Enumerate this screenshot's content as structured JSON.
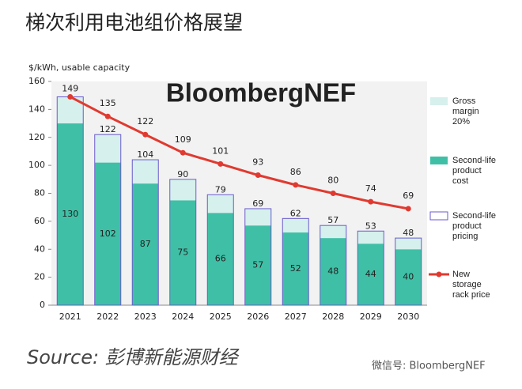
{
  "chart_data": {
    "type": "bar",
    "title": "梯次利用电池组价格展望",
    "y_label": "$/kWh, usable capacity",
    "brand": "BloombergNEF",
    "source": "Source: 彭博新能源财经",
    "watermark": "微信号: BloombergNEF",
    "categories": [
      "2021",
      "2022",
      "2023",
      "2024",
      "2025",
      "2026",
      "2027",
      "2028",
      "2029",
      "2030"
    ],
    "series": [
      {
        "name": "Gross\nmargin\n20%",
        "kind": "stack",
        "color": "#d5f0ed",
        "values": [
          19,
          20,
          17,
          15,
          13,
          12,
          10,
          9,
          9,
          8
        ]
      },
      {
        "name": "Second-life\nproduct\ncost",
        "kind": "stack",
        "color": "#3fbfa6",
        "values": [
          130,
          102,
          87,
          75,
          66,
          57,
          52,
          48,
          44,
          40
        ]
      },
      {
        "name": "Second-life\nproduct\npricing",
        "kind": "outline",
        "color": "#6a5acd",
        "values": [
          149,
          122,
          104,
          90,
          79,
          69,
          62,
          57,
          53,
          48
        ]
      },
      {
        "name": "New\nstorage\nrack price",
        "kind": "line",
        "color": "#e03a30",
        "values": [
          149,
          135,
          122,
          109,
          101,
          93,
          86,
          80,
          74,
          69
        ]
      }
    ],
    "ylim": [
      0,
      160
    ],
    "yticks": [
      0,
      20,
      40,
      60,
      80,
      100,
      120,
      140,
      160
    ],
    "grid": false
  }
}
